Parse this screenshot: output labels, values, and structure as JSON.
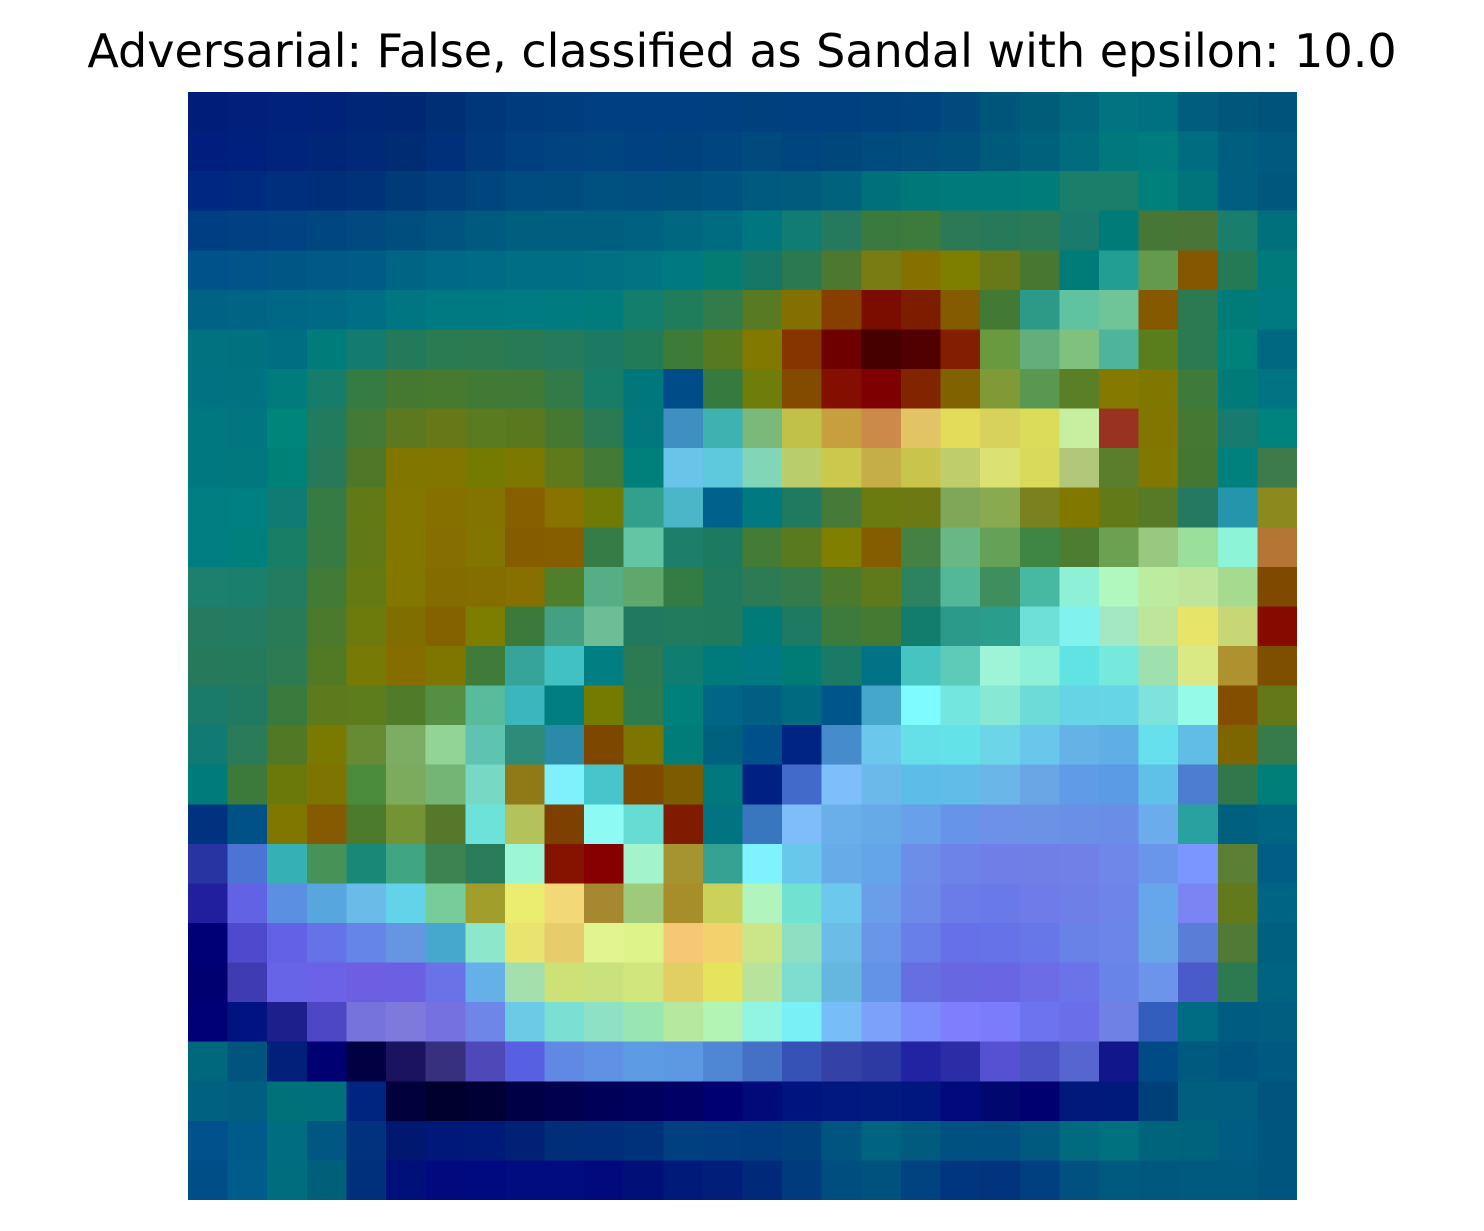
{
  "title": "Adversarial: False, classified as Sandal with epsilon: 10.0",
  "image": {
    "grid_size": 28,
    "rows": [
      [
        "#001d7a",
        "#00207b",
        "#00217c",
        "#002279",
        "#002678",
        "#002773",
        "#002f76",
        "#00377b",
        "#003b7e",
        "#003d7e",
        "#003f81",
        "#003f81",
        "#003f81",
        "#003f80",
        "#00407d",
        "#003f80",
        "#003f80",
        "#00427e",
        "#00447e",
        "#004a7d",
        "#00557b",
        "#005d79",
        "#00677e",
        "#007480",
        "#007180",
        "#005e7d",
        "#00577c",
        "#00547c"
      ],
      [
        "#001e7e",
        "#00207d",
        "#00237b",
        "#002677",
        "#002a77",
        "#002c74",
        "#00307a",
        "#003a7c",
        "#003f80",
        "#004380",
        "#004580",
        "#004281",
        "#00427e",
        "#00457d",
        "#004a7e",
        "#00467e",
        "#00477c",
        "#004b7d",
        "#004d7e",
        "#00527c",
        "#005a7a",
        "#00617c",
        "#006c7e",
        "#00787c",
        "#007b7e",
        "#006c80",
        "#005e7f",
        "#00597e"
      ],
      [
        "#002781",
        "#002a80",
        "#002f7e",
        "#002f79",
        "#003279",
        "#003a77",
        "#003f7c",
        "#00467e",
        "#004b80",
        "#004c7f",
        "#005080",
        "#004f80",
        "#00507e",
        "#005380",
        "#005a7f",
        "#005b7d",
        "#00627c",
        "#00707a",
        "#00787a",
        "#007a7b",
        "#007a7b",
        "#007d7a",
        "#1a7e6b",
        "#1a7e6b",
        "#00807a",
        "#007579",
        "#005f80",
        "#00577e"
      ],
      [
        "#003e83",
        "#004083",
        "#004282",
        "#00467f",
        "#004a80",
        "#004e7e",
        "#00547f",
        "#005a80",
        "#005e7f",
        "#005f7f",
        "#005f7e",
        "#006180",
        "#006780",
        "#006c81",
        "#00777f",
        "#117c71",
        "#257a5e",
        "#3b7a3f",
        "#3d7b3c",
        "#2b7a55",
        "#277a59",
        "#2a7a56",
        "#1a7a6b",
        "#007b78",
        "#477737",
        "#497637",
        "#1a7e6d",
        "#00707d"
      ],
      [
        "#00528a",
        "#005488",
        "#005786",
        "#005987",
        "#005c86",
        "#006585",
        "#006987",
        "#006b86",
        "#006e85",
        "#006f85",
        "#007082",
        "#007482",
        "#007a80",
        "#037d73",
        "#177767",
        "#2a7950",
        "#4d7830",
        "#787c12",
        "#857000",
        "#7e7f00",
        "#677a17",
        "#477731",
        "#007c78",
        "#239e92",
        "#649a4d",
        "#855700",
        "#257a56",
        "#007a7c"
      ],
      [
        "#006386",
        "#006485",
        "#006784",
        "#006a84",
        "#006f86",
        "#007683",
        "#007a82",
        "#007a81",
        "#007b81",
        "#007b7f",
        "#007c7c",
        "#137e6b",
        "#1f7d5c",
        "#337b48",
        "#577a22",
        "#837000",
        "#873f00",
        "#7b0d00",
        "#7d1d00",
        "#845b00",
        "#427a35",
        "#2d9a87",
        "#5fc2a1",
        "#6fc498",
        "#855900",
        "#2b7a51",
        "#007c78",
        "#007a81"
      ],
      [
        "#007280",
        "#00717f",
        "#006e82",
        "#007d7a",
        "#147b70",
        "#227a5a",
        "#2a7a52",
        "#2c7a50",
        "#287a55",
        "#247a5c",
        "#1d7a62",
        "#227b58",
        "#3c7b38",
        "#567a1d",
        "#817900",
        "#873500",
        "#6f0000",
        "#460000",
        "#500000",
        "#831f00",
        "#699a3f",
        "#64ae7b",
        "#7fc17d",
        "#4fb49c",
        "#5b7e1c",
        "#2c7a51",
        "#00817a",
        "#006880"
      ],
      [
        "#007383",
        "#007381",
        "#007c7c",
        "#167d6b",
        "#347b44",
        "#457932",
        "#477a2f",
        "#417a35",
        "#407a36",
        "#327a47",
        "#177d69",
        "#00787b",
        "#004c88",
        "#377a40",
        "#6f7d0b",
        "#834b00",
        "#820f00",
        "#7e0000",
        "#812500",
        "#806300",
        "#809a37",
        "#5a9751",
        "#5b7f26",
        "#857900",
        "#807700",
        "#3e7a3a",
        "#007b78",
        "#007483"
      ],
      [
        "#007880",
        "#007780",
        "#00857a",
        "#227b5c",
        "#427a36",
        "#5c7920",
        "#667817",
        "#5a7b20",
        "#5a791f",
        "#457931",
        "#2c7a53",
        "#00787e",
        "#3f8fc3",
        "#3eb1b1",
        "#7bb97a",
        "#c1c14a",
        "#c79f3f",
        "#cc8a4a",
        "#e3c465",
        "#e3dc5b",
        "#d7d25b",
        "#dcdc5b",
        "#c6ef9f",
        "#9a3222",
        "#837600",
        "#457833",
        "#177b70",
        "#00827f"
      ],
      [
        "#007880",
        "#00787e",
        "#008178",
        "#27795a",
        "#4e7827",
        "#817700",
        "#837600",
        "#747b00",
        "#7d7900",
        "#5f7a1a",
        "#437a35",
        "#00807a",
        "#6ac3e8",
        "#5ec9dc",
        "#80d6b6",
        "#b9cd6c",
        "#ccc84e",
        "#c5ad48",
        "#c9c44b",
        "#c0cd6b",
        "#dbe273",
        "#d9da5c",
        "#b1c77a",
        "#5b7e2c",
        "#807800",
        "#447832",
        "#00817d",
        "#3e7b4b"
      ],
      [
        "#007e82",
        "#008080",
        "#107b72",
        "#367b43",
        "#617a15",
        "#837700",
        "#857000",
        "#837300",
        "#875e00",
        "#887200",
        "#707b06",
        "#33a08d",
        "#4ab6c7",
        "#00618c",
        "#007980",
        "#1f7a5f",
        "#457a38",
        "#6b7b10",
        "#6d7a14",
        "#80a657",
        "#8aaa50",
        "#7a8220",
        "#817800",
        "#637a18",
        "#567a26",
        "#237a60",
        "#2595ac",
        "#8c8a1e"
      ],
      [
        "#007e82",
        "#00807d",
        "#187e66",
        "#377b43",
        "#617a17",
        "#847700",
        "#866e00",
        "#837600",
        "#855d00",
        "#865e00",
        "#367c47",
        "#62c6a5",
        "#1d7f6a",
        "#1c7a60",
        "#427c36",
        "#597a1f",
        "#807f00",
        "#845d00",
        "#468144",
        "#6ab786",
        "#65a257",
        "#3f8645",
        "#4c7d30",
        "#6ba150",
        "#99c880",
        "#9be09a",
        "#8ef4d8",
        "#b57534"
      ],
      [
        "#1d7f6e",
        "#1b7f6d",
        "#237b60",
        "#427b35",
        "#657a12",
        "#827700",
        "#856c00",
        "#846e00",
        "#876f00",
        "#4f7f2b",
        "#56ae87",
        "#60a76c",
        "#337d44",
        "#1f7a5e",
        "#2c7b54",
        "#337b4a",
        "#4c7a2d",
        "#5e7a1b",
        "#2d8360",
        "#52b898",
        "#3e8f5d",
        "#47b8a2",
        "#8ef1d5",
        "#b1f8bf",
        "#bdeca0",
        "#bde69a",
        "#a6da8e",
        "#804900"
      ],
      [
        "#257b60",
        "#237b62",
        "#297b56",
        "#4b7a2c",
        "#6d7b0d",
        "#816e00",
        "#856200",
        "#7d7d00",
        "#3b7a3b",
        "#43a083",
        "#6dbe96",
        "#217a5f",
        "#227b5d",
        "#217a5c",
        "#007b77",
        "#1e7a63",
        "#3d7b3c",
        "#457a33",
        "#127d6c",
        "#2c9a8b",
        "#2a9d8d",
        "#6ee0d8",
        "#82f2ee",
        "#a1e8c3",
        "#bde69a",
        "#e8e46a",
        "#c8d775",
        "#860a00"
      ],
      [
        "#267a5b",
        "#257a5b",
        "#2d7b52",
        "#527a25",
        "#777b06",
        "#856d00",
        "#7f7600",
        "#3f7c39",
        "#36a498",
        "#42c1c5",
        "#007e82",
        "#2b7a51",
        "#0f7e70",
        "#007b7c",
        "#007983",
        "#007c77",
        "#1b7a65",
        "#007386",
        "#46c4c1",
        "#5ecab8",
        "#9df4d6",
        "#8ff0d8",
        "#61e3e3",
        "#76e9dc",
        "#9ee0ae",
        "#dbe985",
        "#ad922f",
        "#7f4f00"
      ],
      [
        "#1a7b6a",
        "#1f7a61",
        "#3a7b3d",
        "#5d7a1d",
        "#5d7c1c",
        "#507c2a",
        "#558f43",
        "#58bc9c",
        "#3cb6bd",
        "#007e80",
        "#757b00",
        "#2e7b4e",
        "#00807b",
        "#006586",
        "#005f83",
        "#006a80",
        "#00568a",
        "#45a7cb",
        "#7dfbff",
        "#73e6df",
        "#87e8d3",
        "#6ddcd9",
        "#67d4e6",
        "#66d5e6",
        "#7ee4db",
        "#93fbe8",
        "#844e00",
        "#64781a"
      ],
      [
        "#117b73",
        "#2a7b57",
        "#517824",
        "#7b7a00",
        "#668b32",
        "#7dad62",
        "#92d495",
        "#5ec3b1",
        "#2d8b7a",
        "#2a8aa8",
        "#7e4700",
        "#7c7600",
        "#007d78",
        "#00617f",
        "#00518b",
        "#002484",
        "#468bcb",
        "#6bc8ec",
        "#66e0e8",
        "#63e2e7",
        "#6cd6e8",
        "#68c7ea",
        "#65b3e6",
        "#5fafe4",
        "#65e0ec",
        "#5fbde6",
        "#7d6600",
        "#387b4a"
      ],
      [
        "#007b7b",
        "#3c7a3c",
        "#6b780a",
        "#7d7500",
        "#4a8c3c",
        "#7cab5e",
        "#74b474",
        "#77d9c3",
        "#8f7a17",
        "#7ff1fd",
        "#48c5cb",
        "#7f4900",
        "#7c5c00",
        "#00787e",
        "#002183",
        "#426acb",
        "#7ebef9",
        "#6bb9ea",
        "#5ebce8",
        "#5fbde8",
        "#6ab6e8",
        "#6aa6e6",
        "#5f9be7",
        "#5b9be6",
        "#60c1e8",
        "#4b7ecf",
        "#30784c",
        "#007f7a"
      ],
      [
        "#00337f",
        "#005286",
        "#7f7700",
        "#855a00",
        "#4d7b2d",
        "#749335",
        "#55782a",
        "#6de2d8",
        "#b3c25a",
        "#7d4000",
        "#8dfbf3",
        "#67dcd2",
        "#7e1b00",
        "#007480",
        "#3876bd",
        "#7fbdfa",
        "#6aaeea",
        "#66aae8",
        "#68a0e9",
        "#6694e8",
        "#6e91e8",
        "#6c92e6",
        "#6a90e6",
        "#6a8de7",
        "#6aacec",
        "#2aa1a1",
        "#00617f",
        "#006580"
      ],
      [
        "#2734a2",
        "#4c74d5",
        "#35b1b4",
        "#469257",
        "#198877",
        "#40a582",
        "#3d8251",
        "#2a7d5b",
        "#9df6d6",
        "#841400",
        "#860000",
        "#a3f4cd",
        "#a69431",
        "#35a294",
        "#7ef2ff",
        "#68c7ea",
        "#67ace8",
        "#64a4e8",
        "#6d8ee8",
        "#6d83e8",
        "#707fe8",
        "#707fe6",
        "#7080e6",
        "#6f87e8",
        "#6996eb",
        "#7a97ff",
        "#5b7f35",
        "#005e86",
        "#00747e"
      ],
      [
        "#221f9e",
        "#6263e4",
        "#5b8fe2",
        "#57a6de",
        "#6abbe8",
        "#62d3e8",
        "#76cd99",
        "#a29e2c",
        "#ebed70",
        "#f3d877",
        "#a58830",
        "#9fca7c",
        "#a88e2a",
        "#cad25c",
        "#b1f4be",
        "#71e2d1",
        "#6cc8ed",
        "#6b9ee8",
        "#6c8be8",
        "#6b7ce8",
        "#6a79e8",
        "#6f7be9",
        "#6f7fe8",
        "#6f84e8",
        "#66a6ea",
        "#7a85f3",
        "#62791c",
        "#006584",
        "#006b7f"
      ],
      [
        "#000076",
        "#4f4acd",
        "#6262e6",
        "#6673e8",
        "#6685e8",
        "#6696e2",
        "#46a8cd",
        "#8de8cb",
        "#e9e46e",
        "#e7cc6c",
        "#e1f48f",
        "#def488",
        "#f6c775",
        "#f1d26c",
        "#cbe688",
        "#8fdfc2",
        "#6bbde8",
        "#6996e8",
        "#687ee8",
        "#6670e8",
        "#6672e8",
        "#6777e8",
        "#6882e8",
        "#6b86e8",
        "#67a7e8",
        "#5a7ed8",
        "#517a36",
        "#00607f",
        "#006a81"
      ],
      [
        "#000071",
        "#3e3cb0",
        "#6764e8",
        "#6b62e8",
        "#6e5ee2",
        "#6b5fe2",
        "#6a72e8",
        "#66b0e8",
        "#a4e0ae",
        "#cde177",
        "#c9e27d",
        "#d1e67c",
        "#e1cf63",
        "#e6e35c",
        "#b7e49a",
        "#7fddd0",
        "#65b7e0",
        "#6393e6",
        "#656fe2",
        "#6768e1",
        "#6a66e3",
        "#6c6ce6",
        "#6a73e8",
        "#6884e8",
        "#6b94ea",
        "#495bc9",
        "#2e7a50",
        "#006480",
        "#00687f"
      ],
      [
        "#000075",
        "#001380",
        "#1d1f8d",
        "#4d47c5",
        "#7773dc",
        "#7d7adc",
        "#7571e1",
        "#6d86e8",
        "#6ccae6",
        "#7ae0d4",
        "#8fe1c5",
        "#9ae6b3",
        "#b6e8a0",
        "#b3f3b4",
        "#90f5e3",
        "#78f0f5",
        "#77bdf7",
        "#7ba1fb",
        "#7b8cfb",
        "#7f7ffd",
        "#7a7cfc",
        "#6d72ef",
        "#6a6ee8",
        "#7081e5",
        "#345ebd",
        "#006c84",
        "#005c80",
        "#005e80"
      ],
      [
        "#00687c",
        "#00547d",
        "#00207a",
        "#000072",
        "#000042",
        "#1b135f",
        "#36307f",
        "#4e48b9",
        "#5660e0",
        "#6089e4",
        "#5f91e4",
        "#5d9be4",
        "#5c99e2",
        "#4f87d4",
        "#4470c6",
        "#3652b6",
        "#3441a5",
        "#2d3aa4",
        "#2123a2",
        "#2d2ca7",
        "#5650d3",
        "#4a53c4",
        "#5665d0",
        "#11168b",
        "#004b85",
        "#00597e",
        "#005580",
        "#005980"
      ],
      [
        "#006180",
        "#005e80",
        "#007079",
        "#00717a",
        "#002580",
        "#00003d",
        "#00002c",
        "#000035",
        "#000046",
        "#00004f",
        "#000058",
        "#00005e",
        "#000067",
        "#000073",
        "#000b7a",
        "#001480",
        "#001880",
        "#001a7f",
        "#001780",
        "#000a7c",
        "#000870",
        "#000071",
        "#00197b",
        "#001a7b",
        "#004079",
        "#005f7d",
        "#005e80",
        "#00547d"
      ],
      [
        "#00518c",
        "#005b8a",
        "#006e80",
        "#005782",
        "#00327d",
        "#001870",
        "#001879",
        "#001a7a",
        "#002176",
        "#002e78",
        "#002e7b",
        "#00327c",
        "#003f80",
        "#003e81",
        "#003c80",
        "#00407c",
        "#005480",
        "#006380",
        "#005b7f",
        "#005180",
        "#005182",
        "#005a80",
        "#006b7f",
        "#00717e",
        "#00657c",
        "#00637e",
        "#005c82",
        "#00557e"
      ],
      [
        "#004e87",
        "#005c8a",
        "#006d7e",
        "#00607a",
        "#00307c",
        "#00107b",
        "#000a7f",
        "#000a80",
        "#000c80",
        "#000c80",
        "#000a7c",
        "#001078",
        "#001a7a",
        "#001e7a",
        "#002a79",
        "#003c7d",
        "#004d80",
        "#00527e",
        "#004380",
        "#00367f",
        "#00357e",
        "#003f80",
        "#005180",
        "#005a7f",
        "#00587f",
        "#005a80",
        "#005a80",
        "#00557f"
      ]
    ]
  }
}
